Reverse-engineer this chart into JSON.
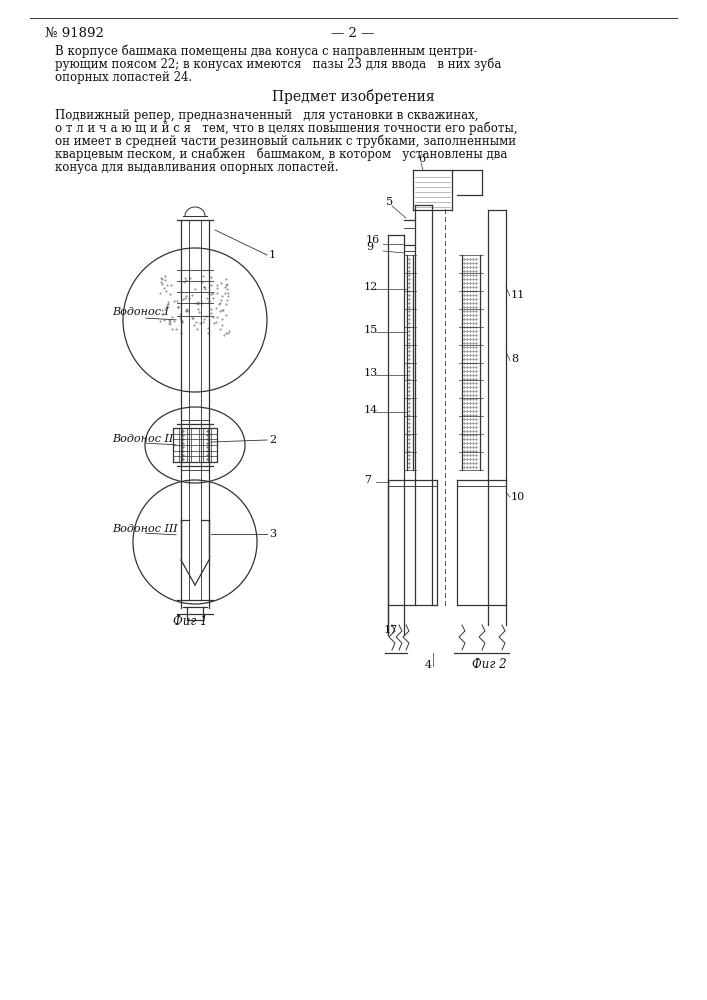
{
  "patent_number": "№ 91892",
  "page_number": "— 2 —",
  "background_color": "#ffffff",
  "text_color": "#111111",
  "line_color": "#333333",
  "header_text_1": "В корпусе башмака помещены два конуса с направленным центри-",
  "header_text_2": "рующим поясом 22; в конусах имеются   пазы 23 для ввода   в них зуба",
  "header_text_3": "опорных лопастей 24.",
  "section_title": "Предмет изобретения",
  "body_text_1": "Подвижный репер, предназначенный   для установки в скважинах,",
  "body_text_2": "о т л и ч а ю щ и й с я   тем, что в целях повышения точности его работы,",
  "body_text_3": "он имеет в средней части резиновый сальник с трубками, заполненными",
  "body_text_4": "кварцевым песком, и снабжен   башмаком, в котором   установлены два",
  "body_text_5": "конуса для выдавливания опорных лопастей.",
  "fig1_label": "Фиг 1",
  "fig2_label": "Фиг 2",
  "vodonas_1": "Водонос I",
  "vodonas_2": "Водонос II",
  "vodonas_3": "Водонос III"
}
